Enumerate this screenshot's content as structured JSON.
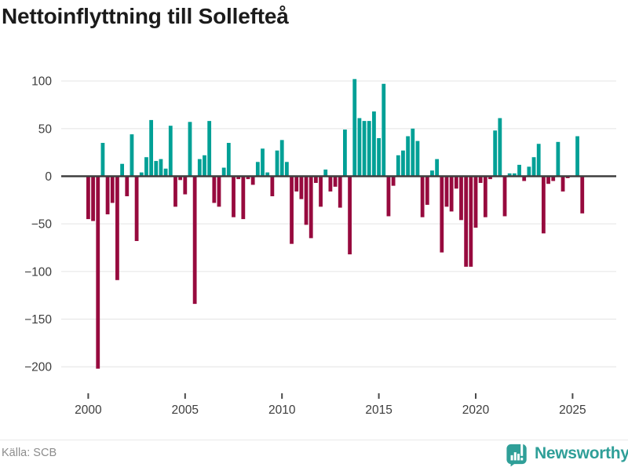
{
  "title": "Nettoinflyttning till Sollefteå",
  "source": "Källa: SCB",
  "brand": {
    "name": "Newsworthy"
  },
  "colors": {
    "positive_bar": "#00A096",
    "negative_bar": "#970A3E",
    "zero_line": "#3F3F3F",
    "gridline": "#E4E4E4",
    "axis_text": "#3D3D3D",
    "brand_teal": "#2F9F98",
    "source_gray": "#8C8C8C"
  },
  "chart_data": {
    "type": "bar",
    "title": "Nettoinflyttning till Sollefteå",
    "frequency": "quarterly",
    "x_start": "2000-Q1",
    "x_end": "2025-Q3",
    "x_tick_labels": [
      "2000",
      "2005",
      "2010",
      "2015",
      "2020",
      "2025"
    ],
    "y_tick_values": [
      100,
      50,
      0,
      -50,
      -100,
      -150,
      -200
    ],
    "y_tick_labels": [
      "100",
      "50",
      "0",
      "−50",
      "−100",
      "−150",
      "−200"
    ],
    "ylim": [
      -215,
      112
    ],
    "grid": true,
    "legend": "none",
    "values": [
      -45,
      -47,
      -202,
      35,
      -40,
      -28,
      -109,
      13,
      -21,
      44,
      -68,
      4,
      20,
      59,
      16,
      18,
      8,
      53,
      -32,
      -4,
      -19,
      57,
      -134,
      18,
      22,
      58,
      -28,
      -32,
      9,
      35,
      -43,
      -3,
      -45,
      -3,
      -9,
      15,
      29,
      4,
      -21,
      27,
      38,
      15,
      -71,
      -16,
      -24,
      -51,
      -65,
      -7,
      -32,
      7,
      -16,
      -11,
      -33,
      49,
      -82,
      102,
      61,
      58,
      58,
      68,
      40,
      97,
      -42,
      -10,
      22,
      27,
      42,
      50,
      37,
      -43,
      -30,
      6,
      18,
      -80,
      -32,
      -37,
      -13,
      -46,
      -95,
      -95,
      -54,
      -7,
      -43,
      -3,
      48,
      61,
      -42,
      3,
      3,
      12,
      -5,
      10,
      20,
      34,
      -60,
      -8,
      -5,
      36,
      -16,
      -2,
      0,
      42,
      -39
    ]
  }
}
